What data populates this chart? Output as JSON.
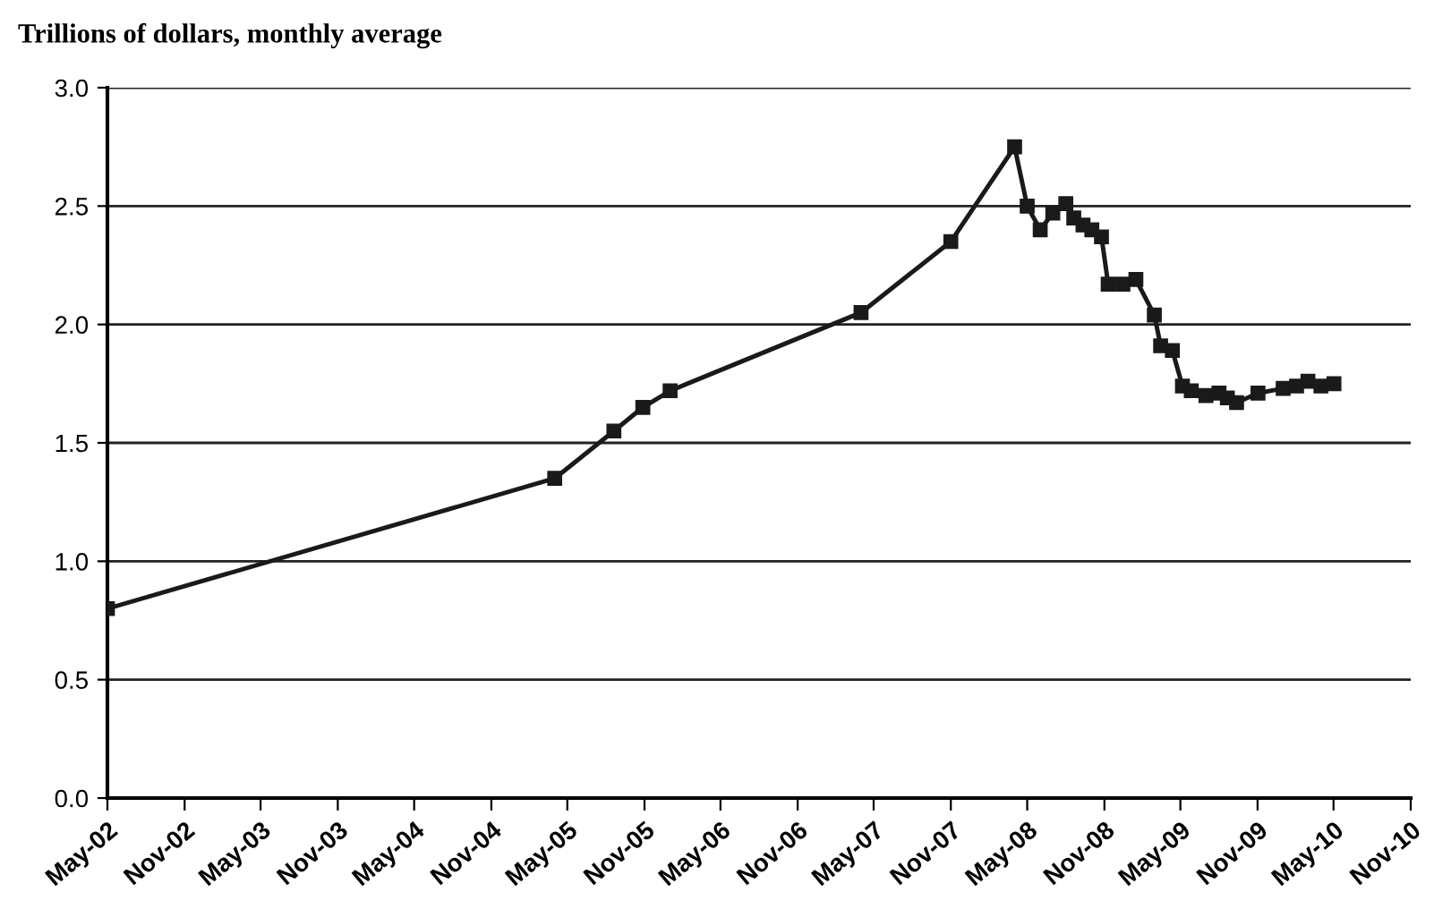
{
  "chart_data": {
    "type": "line",
    "title": "Trillions of dollars, monthly average",
    "x": [
      "2002-05-01",
      "2005-04-01",
      "2005-08-20",
      "2005-10-28",
      "2006-01-01",
      "2007-04-01",
      "2007-11-01",
      "2008-04-01",
      "2008-05-01",
      "2008-06-01",
      "2008-07-01",
      "2008-08-01",
      "2008-08-20",
      "2008-09-11",
      "2008-10-02",
      "2008-10-25",
      "2008-11-10",
      "2008-12-15",
      "2009-01-15",
      "2009-02-28",
      "2009-03-15",
      "2009-04-12",
      "2009-05-06",
      "2009-05-27",
      "2009-07-01",
      "2009-08-01",
      "2009-08-21",
      "2009-09-12",
      "2009-11-02",
      "2010-01-01",
      "2010-02-02",
      "2010-03-01",
      "2010-04-01",
      "2010-05-02"
    ],
    "series": [
      {
        "color": "#1a1a1a",
        "values": [
          0.8,
          1.35,
          1.55,
          1.65,
          1.72,
          2.05,
          2.35,
          2.75,
          2.5,
          2.4,
          2.47,
          2.51,
          2.45,
          2.42,
          2.4,
          2.37,
          2.17,
          2.17,
          2.19,
          2.04,
          1.91,
          1.89,
          1.74,
          1.72,
          1.7,
          1.71,
          1.69,
          1.67,
          1.71,
          1.73,
          1.74,
          1.76,
          1.74,
          1.75
        ]
      }
    ],
    "xlim": [
      "2002-05-01",
      "2010-11-01"
    ],
    "xticks": [
      {
        "value": "2002-05-01",
        "label": "May-02"
      },
      {
        "value": "2002-11-01",
        "label": "Nov-02"
      },
      {
        "value": "2003-05-01",
        "label": "May-03"
      },
      {
        "value": "2003-11-01",
        "label": "Nov-03"
      },
      {
        "value": "2004-05-01",
        "label": "May-04"
      },
      {
        "value": "2004-11-01",
        "label": "Nov-04"
      },
      {
        "value": "2005-05-01",
        "label": "May-05"
      },
      {
        "value": "2005-11-01",
        "label": "Nov-05"
      },
      {
        "value": "2006-05-01",
        "label": "May-06"
      },
      {
        "value": "2006-11-01",
        "label": "Nov-06"
      },
      {
        "value": "2007-05-01",
        "label": "May-07"
      },
      {
        "value": "2007-11-01",
        "label": "Nov-07"
      },
      {
        "value": "2008-05-01",
        "label": "May-08"
      },
      {
        "value": "2008-11-01",
        "label": "Nov-08"
      },
      {
        "value": "2009-05-01",
        "label": "May-09"
      },
      {
        "value": "2009-11-01",
        "label": "Nov-09"
      },
      {
        "value": "2010-05-01",
        "label": "May-10"
      },
      {
        "value": "2010-11-01",
        "label": "Nov-10"
      }
    ],
    "ylim": [
      0,
      3.0
    ],
    "yticks": [
      {
        "value": 0,
        "label": "0.0"
      },
      {
        "value": 0.5,
        "label": "0.5"
      },
      {
        "value": 1.0,
        "label": "1.0"
      },
      {
        "value": 1.5,
        "label": "1.5"
      },
      {
        "value": 2.0,
        "label": "2.0"
      },
      {
        "value": 2.5,
        "label": "2.5"
      },
      {
        "value": 3.0,
        "label": "3.0"
      }
    ],
    "grid": "y",
    "marker": "square",
    "line_style": "solid",
    "legend": false
  }
}
